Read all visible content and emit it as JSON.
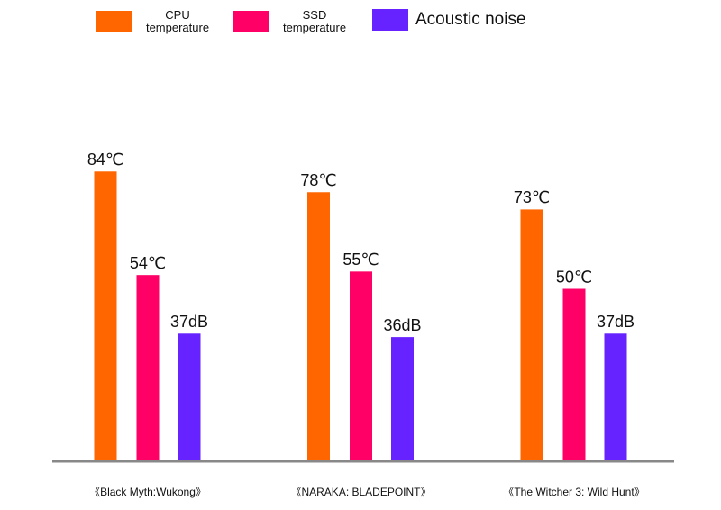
{
  "chart_data": {
    "type": "bar",
    "categories": [
      "《Black Myth:Wukong》",
      "《NARAKA: BLADEPOINT》",
      "《The Witcher 3: Wild Hunt》"
    ],
    "series": [
      {
        "name": "CPU temperature",
        "color": "#ff6600",
        "values": [
          84,
          78,
          73
        ],
        "value_labels": [
          "84℃",
          "78℃",
          "73℃"
        ]
      },
      {
        "name": "SSD temperature",
        "color": "#ff0066",
        "values": [
          54,
          55,
          50
        ],
        "value_labels": [
          "54℃",
          "55℃",
          "50℃"
        ]
      },
      {
        "name": "Acoustic noise",
        "color": "#6622ff",
        "values": [
          37,
          36,
          37
        ],
        "value_labels": [
          "37dB",
          "36dB",
          "37dB"
        ]
      }
    ]
  }
}
